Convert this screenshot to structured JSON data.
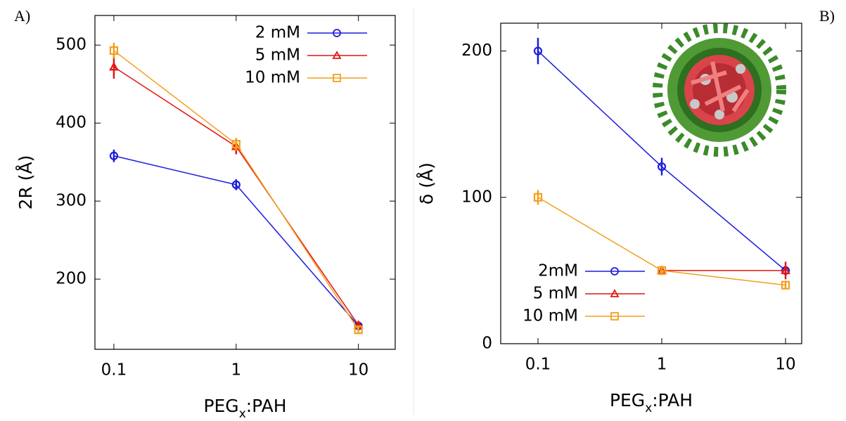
{
  "chart_data": [
    {
      "type": "line",
      "panel_label": "A)",
      "ylabel": "2R (Å)",
      "xlabel": [
        "PEG",
        "x",
        ":PAH"
      ],
      "x": [
        0.1,
        1,
        10
      ],
      "xscale": "log",
      "xlim": [
        0.07,
        20
      ],
      "xticks": [
        0.1,
        1,
        10
      ],
      "ylim": [
        110,
        538
      ],
      "yticks": [
        200,
        300,
        400,
        500
      ],
      "legend": "upper right",
      "series": [
        {
          "name": "2 mM",
          "color": "#1c1cdc",
          "marker": "circle",
          "values": [
            358,
            321,
            140
          ],
          "errors": [
            8,
            7,
            3
          ]
        },
        {
          "name": "5 mM",
          "color": "#e41414",
          "marker": "triangle",
          "values": [
            472,
            370,
            141
          ],
          "errors": [
            15,
            10,
            4
          ]
        },
        {
          "name": "10 mM",
          "color": "#f2a01c",
          "marker": "square",
          "values": [
            493,
            373,
            135
          ],
          "errors": [
            10,
            8,
            4
          ]
        }
      ]
    },
    {
      "type": "line",
      "panel_label": "B)",
      "ylabel": "δ (Å)",
      "xlabel": [
        "PEG",
        "x",
        ":PAH"
      ],
      "x": [
        0.1,
        1,
        10
      ],
      "xscale": "log",
      "xlim": [
        0.05,
        13.5
      ],
      "xticks": [
        0.1,
        1,
        10
      ],
      "ylim": [
        0,
        219
      ],
      "yticks": [
        0,
        100,
        200
      ],
      "legend": "lower left",
      "series": [
        {
          "name": "2mM",
          "color": "#1c1cdc",
          "marker": "circle",
          "values": [
            200,
            121,
            50
          ],
          "errors": [
            9,
            6,
            3
          ]
        },
        {
          "name": "5 mM",
          "color": "#e41414",
          "marker": "triangle",
          "values": [
            null,
            50,
            50
          ],
          "errors": [
            null,
            3,
            6
          ]
        },
        {
          "name": "10 mM",
          "color": "#f2a01c",
          "marker": "square",
          "values": [
            100,
            50,
            40
          ],
          "errors": [
            5,
            3,
            3
          ]
        }
      ]
    }
  ]
}
